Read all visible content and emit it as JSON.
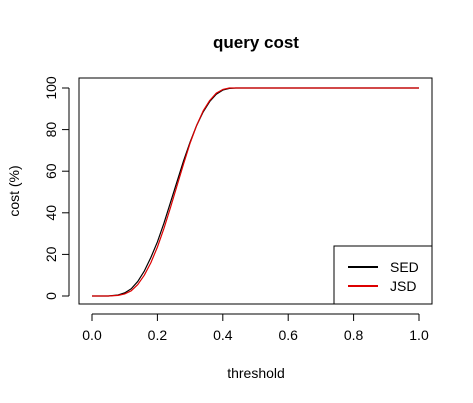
{
  "chart_data": {
    "type": "line",
    "title": "query cost",
    "xlabel": "threshold",
    "ylabel": "cost (%)",
    "xlim": [
      0,
      1
    ],
    "ylim": [
      0,
      100
    ],
    "xticks": [
      "0.0",
      "0.2",
      "0.4",
      "0.6",
      "0.8",
      "1.0"
    ],
    "yticks": [
      "0",
      "20",
      "40",
      "60",
      "80",
      "100"
    ],
    "grid": false,
    "legend_position": "bottom-right",
    "series": [
      {
        "name": "SED",
        "color": "#000000",
        "x": [
          0,
          0.05,
          0.08,
          0.1,
          0.12,
          0.14,
          0.16,
          0.18,
          0.2,
          0.22,
          0.24,
          0.26,
          0.28,
          0.3,
          0.32,
          0.34,
          0.36,
          0.38,
          0.4,
          0.42,
          0.44,
          0.46,
          0.5,
          1.0
        ],
        "y": [
          0,
          0,
          0.5,
          1.5,
          3.5,
          7,
          12,
          18.5,
          26,
          35,
          45,
          55,
          65,
          74,
          82,
          88.5,
          93.5,
          97,
          99,
          99.8,
          100,
          100,
          100,
          100
        ]
      },
      {
        "name": "JSD",
        "color": "#dd0000",
        "x": [
          0,
          0.05,
          0.08,
          0.1,
          0.12,
          0.14,
          0.16,
          0.18,
          0.2,
          0.22,
          0.24,
          0.26,
          0.28,
          0.3,
          0.32,
          0.34,
          0.36,
          0.38,
          0.4,
          0.42,
          0.44,
          0.46,
          0.5,
          1.0
        ],
        "y": [
          0,
          0,
          0.3,
          1,
          2.5,
          5.5,
          10,
          16,
          23.5,
          32.5,
          42.5,
          53,
          63.5,
          73.5,
          82,
          89,
          94,
          97.5,
          99.3,
          100,
          100,
          100,
          100,
          100
        ]
      }
    ]
  }
}
